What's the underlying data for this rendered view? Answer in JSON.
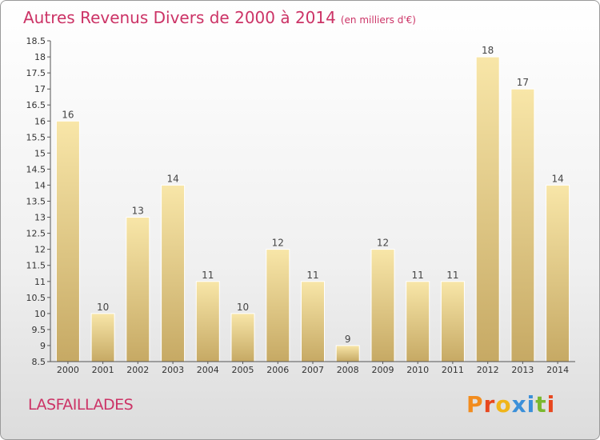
{
  "header": {
    "title": "Autres Revenus Divers de 2000 à 2014",
    "subtitle": "(en milliers d'€)"
  },
  "footer": {
    "town": "LASFAILLADES",
    "logo": [
      "P",
      "r",
      "o",
      "x",
      "i",
      "t",
      "i"
    ],
    "logo_colors": [
      "#f28c1e",
      "#e8471e",
      "#f0b51a",
      "#3a8fd9",
      "#3a8fd9",
      "#7ab82e",
      "#e8471e"
    ]
  },
  "colors": {
    "title": "#cc3366",
    "bar_light": "#f6e3a4",
    "bar_dark": "#c8ac68",
    "axis": "#555555"
  },
  "chart_data": {
    "type": "bar",
    "title": "Autres Revenus Divers de 2000 à 2014",
    "subtitle": "(en milliers d'€)",
    "categories": [
      "2000",
      "2001",
      "2002",
      "2003",
      "2004",
      "2005",
      "2006",
      "2007",
      "2008",
      "2009",
      "2010",
      "2011",
      "2012",
      "2013",
      "2014"
    ],
    "values": [
      16,
      10,
      13,
      14,
      11,
      10,
      12,
      11,
      9,
      12,
      11,
      11,
      18,
      17,
      14
    ],
    "ylim": [
      8.5,
      18.5
    ],
    "yticks": [
      "8.5",
      "9",
      "9.5",
      "10",
      "10.5",
      "11",
      "11.5",
      "12",
      "12.5",
      "13",
      "13.5",
      "14",
      "14.5",
      "15",
      "15.5",
      "16",
      "16.5",
      "17",
      "17.5",
      "18",
      "18.5"
    ],
    "grid": false,
    "data_labels": true
  }
}
